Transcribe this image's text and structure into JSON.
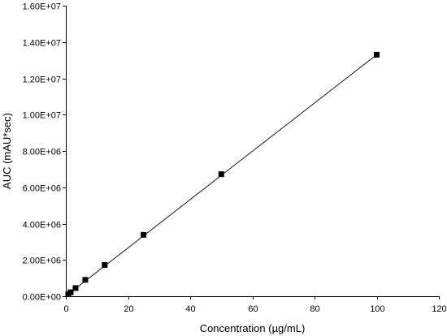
{
  "chart_data": {
    "type": "scatter",
    "title": "",
    "xlabel": "Concentration (µg/mL)",
    "ylabel": "AUC (mAU*sec)",
    "xlim": [
      0,
      120
    ],
    "ylim": [
      0,
      16000000
    ],
    "x_ticks": [
      0,
      20,
      40,
      60,
      80,
      100,
      120
    ],
    "x_tick_labels": [
      "0",
      "20",
      "40",
      "60",
      "80",
      "100",
      "120"
    ],
    "y_ticks": [
      0,
      2000000,
      4000000,
      6000000,
      8000000,
      10000000,
      12000000,
      14000000,
      16000000
    ],
    "y_tick_labels": [
      "0.00E+00",
      "2.00E+06",
      "4.00E+06",
      "6.00E+06",
      "8.00E+06",
      "1.00E+07",
      "1.20E+07",
      "1.40E+07",
      "1.60E+07"
    ],
    "grid": false,
    "marker": "square",
    "series": [
      {
        "x": [
          0.78,
          1.56,
          3.125,
          6.25,
          12.5,
          25,
          50,
          100
        ],
        "y": [
          110000,
          220000,
          450000,
          900000,
          1720000,
          3380000,
          6720000,
          13300000
        ]
      }
    ],
    "trendline": {
      "type": "linear",
      "x": [
        0.5,
        100
      ],
      "y": [
        70000,
        13300000
      ]
    }
  }
}
